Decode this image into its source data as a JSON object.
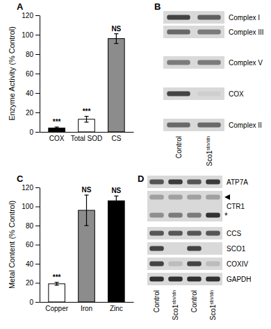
{
  "chart_data": [
    {
      "type": "bar",
      "y_label": "Enzyme Activity (% Control)",
      "categories": [
        "COX",
        "Total SOD",
        "CS"
      ],
      "values": [
        4,
        13,
        96
      ],
      "errors": [
        1,
        3,
        5
      ],
      "colors": [
        "#000000",
        "#ffffff",
        "#8c8c8c"
      ],
      "annotations": [
        "***",
        "***",
        "NS"
      ],
      "ylim": [
        0,
        120
      ],
      "yticks": [
        0,
        20,
        40,
        60,
        80,
        100,
        120
      ],
      "grid": false
    },
    {
      "type": "bar",
      "y_label": "Metal Content (% Control)",
      "categories": [
        "Copper",
        "Iron",
        "Zinc"
      ],
      "values": [
        19,
        96,
        106
      ],
      "errors": [
        1.5,
        16,
        5
      ],
      "colors": [
        "#ffffff",
        "#8c8c8c",
        "#000000"
      ],
      "annotations": [
        "***",
        "NS",
        "NS"
      ],
      "ylim": [
        0,
        120
      ],
      "yticks": [
        0,
        20,
        40,
        60,
        80,
        100,
        120
      ],
      "grid": false
    }
  ],
  "panel_labels": [
    "A",
    "B",
    "C",
    "D"
  ],
  "blots": [
    {
      "lanes": [
        {
          "name": "Control"
        },
        {
          "name": "Sco1",
          "superscript": "stn/stn"
        }
      ],
      "rows": [
        {
          "label": "Complex I",
          "bands": [
            {
              "intensity": [
                0.8,
                0.65
              ]
            }
          ]
        },
        {
          "label": "Complex III",
          "bands": [
            {
              "intensity": [
                0.6,
                0.5
              ]
            }
          ]
        },
        {
          "label": "Complex V",
          "bands": [
            {
              "intensity": [
                0.5,
                0.5
              ]
            }
          ]
        },
        {
          "label": "COX",
          "bands": [
            {
              "intensity": [
                0.8,
                0.05
              ]
            }
          ]
        },
        {
          "label": "Complex II",
          "bands": [
            {
              "intensity": [
                0.6,
                0.6
              ]
            }
          ]
        }
      ]
    },
    {
      "lanes": [
        {
          "name": "Control"
        },
        {
          "name": "Sco1",
          "superscript": "stn/stn"
        },
        {
          "name": "Control"
        },
        {
          "name": "Sco1",
          "superscript": "stn/stn"
        }
      ],
      "rows": [
        {
          "label": "ATP7A",
          "bands": [
            {
              "intensity": [
                0.7,
                0.85,
                0.7,
                0.85
              ]
            }
          ]
        },
        {
          "label": "CTR1",
          "bands": [
            {
              "intensity": [
                0.3,
                0.3,
                0.3,
                0.3
              ],
              "marker": "arrowhead"
            },
            {
              "intensity": [
                0.4,
                0.5,
                0.5,
                0.9
              ],
              "marker": "*"
            }
          ]
        },
        {
          "label": "CCS",
          "bands": [
            {
              "intensity": [
                0.7,
                0.7,
                0.7,
                0.7
              ]
            }
          ]
        },
        {
          "label": "SCO1",
          "bands": [
            {
              "intensity": [
                0.8,
                0.0,
                0.8,
                0.0
              ]
            }
          ]
        },
        {
          "label": "COXIV",
          "bands": [
            {
              "intensity": [
                0.8,
                0.15,
                0.8,
                0.15
              ]
            }
          ]
        },
        {
          "label": "GAPDH",
          "bands": [
            {
              "intensity": [
                0.9,
                0.9,
                0.9,
                0.9
              ]
            }
          ]
        }
      ]
    }
  ]
}
